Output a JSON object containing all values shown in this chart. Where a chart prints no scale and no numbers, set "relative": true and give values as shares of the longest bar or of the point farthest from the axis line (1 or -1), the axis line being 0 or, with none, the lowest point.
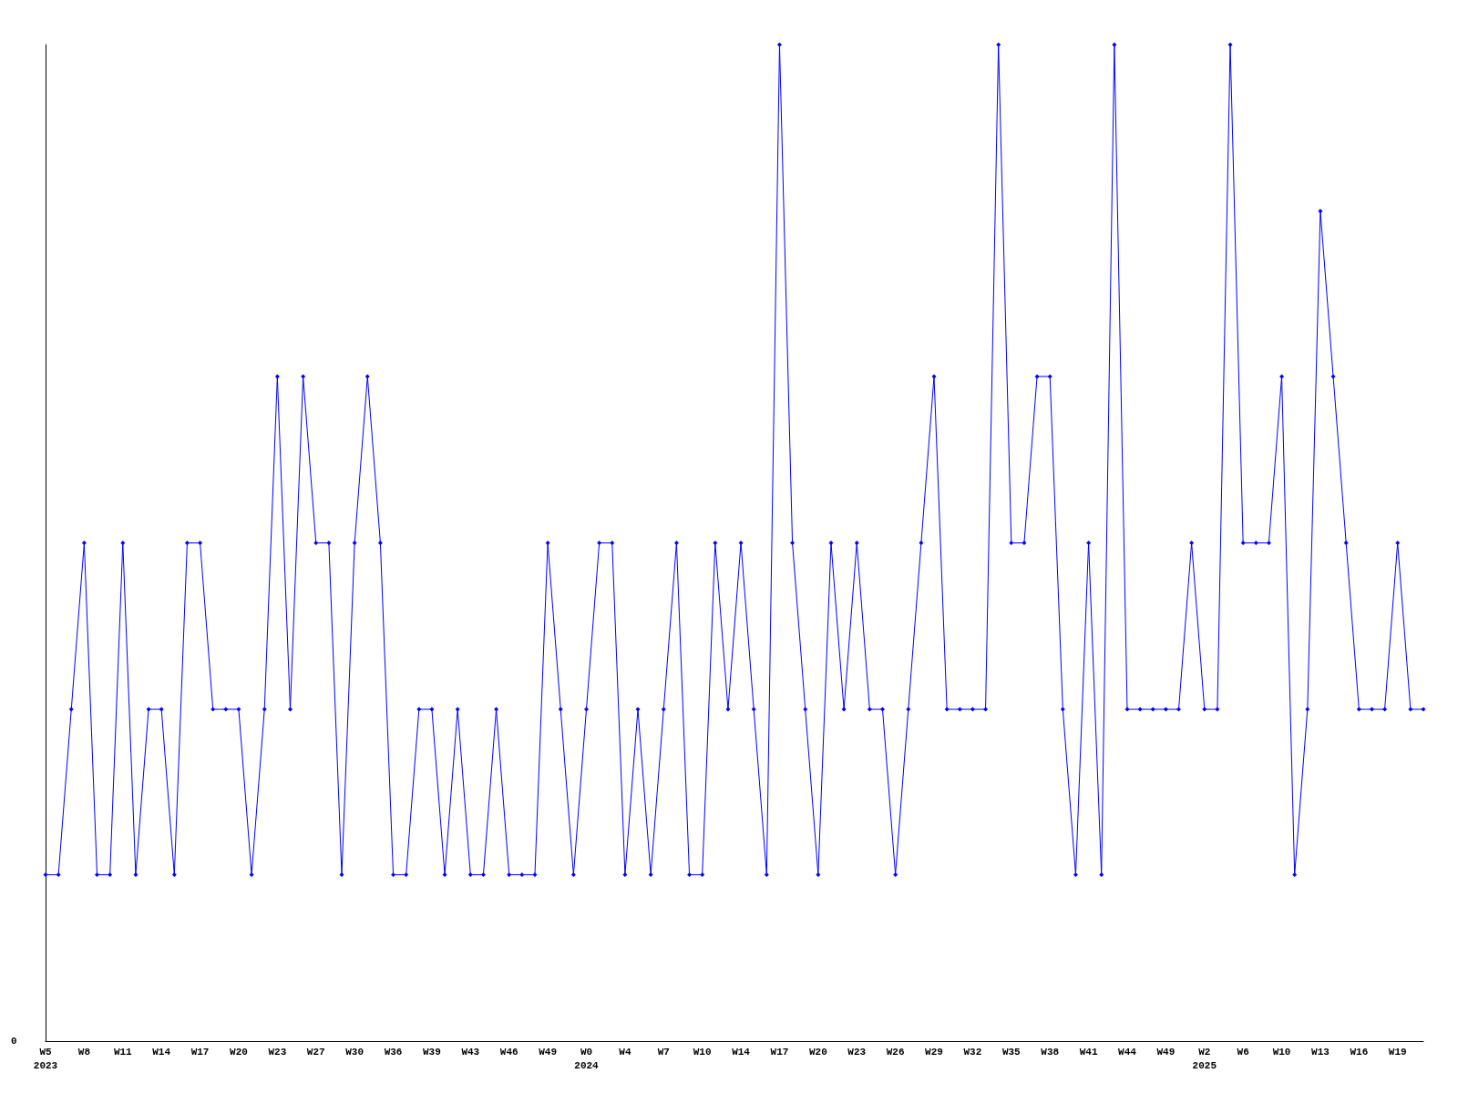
{
  "chart_data": {
    "type": "line",
    "relative": true,
    "color": "#0000ff",
    "marker": "diamond",
    "line_style": "solid",
    "grid": false,
    "categories": [
      "W5\n2023",
      null,
      null,
      "W8",
      null,
      null,
      "W11",
      null,
      null,
      "W14",
      null,
      null,
      "W17",
      null,
      null,
      "W20",
      null,
      null,
      "W23",
      null,
      null,
      "W27",
      null,
      null,
      "W30",
      null,
      null,
      "W36",
      null,
      null,
      "W39",
      null,
      null,
      "W43",
      null,
      null,
      "W46",
      null,
      null,
      "W49",
      null,
      null,
      "W0\n2024",
      null,
      null,
      "W4",
      null,
      null,
      "W7",
      null,
      null,
      "W10",
      null,
      null,
      "W14",
      null,
      null,
      "W17",
      null,
      null,
      "W20",
      null,
      null,
      "W23",
      null,
      null,
      "W26",
      null,
      null,
      "W29",
      null,
      null,
      "W32",
      null,
      null,
      "W35",
      null,
      null,
      "W38",
      null,
      null,
      "W41",
      null,
      null,
      "W44",
      null,
      null,
      "W49",
      null,
      null,
      "W2\n2025",
      null,
      null,
      "W6",
      null,
      null,
      "W10",
      null,
      null,
      "W13",
      null,
      null,
      "W16",
      null,
      null,
      "W19",
      null,
      null
    ],
    "values": [
      0.167,
      0.167,
      0.333,
      0.5,
      0.167,
      0.167,
      0.5,
      0.167,
      0.333,
      0.333,
      0.167,
      0.5,
      0.5,
      0.333,
      0.333,
      0.333,
      0.167,
      0.333,
      0.667,
      0.333,
      0.667,
      0.5,
      0.5,
      0.167,
      0.5,
      0.667,
      0.5,
      0.167,
      0.167,
      0.333,
      0.333,
      0.167,
      0.333,
      0.167,
      0.167,
      0.333,
      0.167,
      0.167,
      0.167,
      0.5,
      0.333,
      0.167,
      0.333,
      0.5,
      0.5,
      0.167,
      0.333,
      0.167,
      0.333,
      0.5,
      0.167,
      0.167,
      0.5,
      0.333,
      0.5,
      0.333,
      0.167,
      1,
      0.5,
      0.333,
      0.167,
      0.5,
      0.333,
      0.5,
      0.333,
      0.333,
      0.167,
      0.333,
      0.5,
      0.667,
      0.333,
      0.333,
      0.333,
      0.333,
      1,
      0.5,
      0.5,
      0.667,
      0.667,
      0.333,
      0.167,
      0.5,
      0.167,
      1,
      0.333,
      0.333,
      0.333,
      0.333,
      0.333,
      0.5,
      0.333,
      0.333,
      1,
      0.5,
      0.5,
      0.5,
      0.667,
      0.167,
      0.333,
      0.833,
      0.667,
      0.5,
      0.333,
      0.333,
      0.333,
      0.5,
      0.333,
      0.333
    ],
    "annotations": [
      "0"
    ]
  }
}
